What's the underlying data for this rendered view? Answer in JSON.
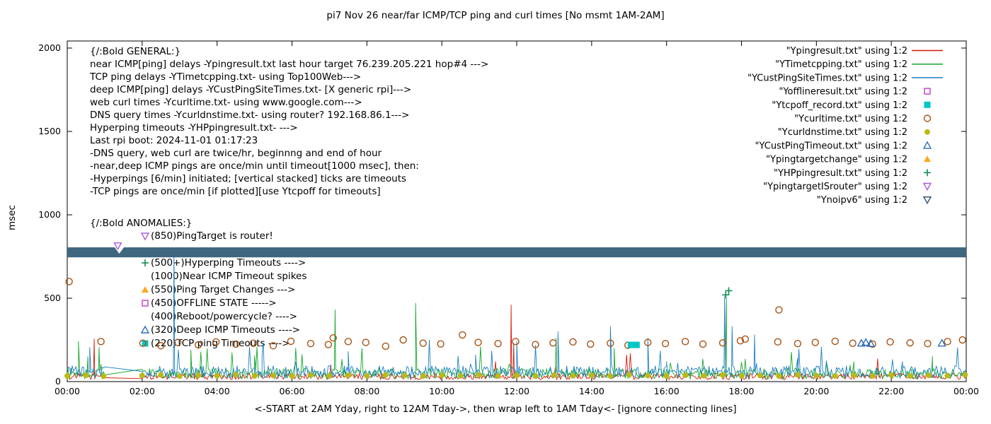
{
  "page": {
    "title": "pi7 Nov 26  near/far ICMP/TCP ping and curl times [No msmt 1AM-2AM]"
  },
  "axes": {
    "ylabel": "msec",
    "xlabel": "<-START at 2AM Yday, right to 12AM Tday->, then wrap left to 1AM Tday<- [ignore connecting lines]",
    "yticks": [
      0,
      500,
      1000,
      1500,
      2000
    ],
    "xticks": [
      "00:00",
      "02:00",
      "04:00",
      "06:00",
      "08:00",
      "10:00",
      "12:00",
      "14:00",
      "16:00",
      "18:00",
      "20:00",
      "22:00",
      "00:00"
    ]
  },
  "legend": {
    "entries": [
      {
        "label": "\"Ypingresult.txt\" using 1:2",
        "sample": "line",
        "marker": null,
        "color": "#d81607"
      },
      {
        "label": "\"YTimetcpping.txt\" using 1:2",
        "sample": "line",
        "marker": null,
        "color": "#15a62c"
      },
      {
        "label": "\"YCustPingSiteTimes.txt\" using 1:2",
        "sample": "line",
        "marker": null,
        "color": "#1b7fc2"
      },
      {
        "label": "\"Yofflineresult.txt\" using 1:2",
        "sample": "marker",
        "marker": "square-open",
        "color": "#c837c8"
      },
      {
        "label": "\"Ytcpoff_record.txt\" using 1:2",
        "sample": "marker",
        "marker": "square-filled",
        "color": "#00c6c6"
      },
      {
        "label": "\"Ycurltime.txt\" using 1:2",
        "sample": "marker",
        "marker": "circle-open",
        "color": "#a85212"
      },
      {
        "label": "\"Ycurldnstime.txt\" using 1:2",
        "sample": "marker",
        "marker": "circle-filled",
        "color": "#b9ba16"
      },
      {
        "label": "\"YCustPingTimeout.txt\" using 1:2",
        "sample": "marker",
        "marker": "triangle-open",
        "color": "#2a6fc0"
      },
      {
        "label": "\"Ypingtargetchange\" using 1:2",
        "sample": "marker",
        "marker": "triangle-filled",
        "color": "#ffa71b"
      },
      {
        "label": "\"YHPpingresult.txt\" using 1:2",
        "sample": "marker",
        "marker": "plus",
        "color": "#0d8f54"
      },
      {
        "label": "\"YpingtargetISrouter\" using 1:2",
        "sample": "marker",
        "marker": "triangle-down-open",
        "color": "#a55fe0"
      },
      {
        "label": "\"Ynoipv6\" using 1:2",
        "sample": "marker",
        "marker": "triangle-down-open",
        "color": "#2e4f6e"
      }
    ]
  },
  "annotations": {
    "general": [
      "{/:Bold GENERAL:}",
      "near ICMP[ping] delays -Ypingresult.txt last hour target 76.239.205.221 hop#4 --->",
      "TCP ping delays -YTimetcpping.txt- using Top100Web--->",
      "deep ICMP[ping] delays -YCustPingSiteTimes.txt- [X generic rpi]--->",
      "web curl times -Ycurltime.txt- using www.google.com--->",
      "DNS query times -Ycurldnstime.txt- using router? 192.168.86.1--->",
      "Hyperping timeouts -YHPpingresult.txt- --->",
      "Last rpi boot: 2024-11-01 01:17:23",
      "                    -DNS query, web curl are twice/hr, beginnng and end of hour",
      "                    -near,deep ICMP pings are once/min until timeout[1000 msec], then:",
      "                      -Hyperpings [6/min] initiated; [vertical stacked] ticks are timeouts",
      "                    -TCP pings are once/min [if plotted][use Ytcpoff for timeouts]"
    ],
    "anomalies_header": "{/:Bold ANOMALIES:}",
    "anomalies": [
      {
        "marker": "triangle-down-open",
        "color": "#a55fe0",
        "text": "(850)PingTarget is router!"
      },
      {
        "marker": null,
        "color": null,
        "text": ""
      },
      {
        "marker": "plus",
        "color": "#0d8f54",
        "text": "(500+)Hyperping Timeouts ---->"
      },
      {
        "marker": null,
        "color": null,
        "text": "(1000)Near ICMP Timeout spikes"
      },
      {
        "marker": "triangle-filled",
        "color": "#ffa71b",
        "text": "(550)Ping Target Changes --->"
      },
      {
        "marker": "square-open",
        "color": "#c837c8",
        "text": "(450)OFFLINE STATE ----->"
      },
      {
        "marker": null,
        "color": null,
        "text": "(400)Reboot/powercycle? ---->"
      },
      {
        "marker": "triangle-open",
        "color": "#2a6fc0",
        "text": "(320)Deep ICMP Timeouts ---->"
      },
      {
        "marker": "square-filled",
        "color": "#00c6c6",
        "text": "(220)TCP ping Timeouts ---->"
      }
    ]
  },
  "chart_data": {
    "type": "line",
    "x_hours_range": [
      0,
      24
    ],
    "ylim": [
      0,
      2000
    ],
    "grid": false,
    "legend_position": "top-right",
    "no_measurement_gap_hours": [
      1,
      2
    ],
    "band": {
      "y_from": 745,
      "y_to": 805,
      "color": "#3f6880"
    },
    "line_series": [
      {
        "name": "Ypingresult",
        "color": "#d81607",
        "baseline_msec": [
          12,
          50
        ],
        "spike_prob": 0.008,
        "spike_range": [
          70,
          170
        ],
        "spikes": [
          [
            0.72,
            255
          ],
          [
            11.85,
            460
          ],
          [
            11.92,
            230
          ]
        ]
      },
      {
        "name": "YTimetcpping",
        "color": "#15a62c",
        "baseline_msec": [
          15,
          80
        ],
        "spike_prob": 0.02,
        "spike_range": [
          90,
          210
        ],
        "spikes": [
          [
            0.3,
            240
          ],
          [
            0.55,
            150
          ],
          [
            0.85,
            205
          ],
          [
            3.3,
            190
          ],
          [
            5.0,
            155
          ],
          [
            7.15,
            430
          ],
          [
            9.3,
            470
          ],
          [
            13.05,
            260
          ],
          [
            14.6,
            200
          ],
          [
            17.6,
            500
          ],
          [
            21.0,
            120
          ],
          [
            23.1,
            150
          ]
        ]
      },
      {
        "name": "YCustPingSiteTimes",
        "color": "#1b7fc2",
        "baseline_msec": [
          20,
          95
        ],
        "spike_prob": 0.03,
        "spike_range": [
          100,
          250
        ],
        "spikes": [
          [
            0.6,
            205
          ],
          [
            2.85,
            790
          ],
          [
            5.2,
            150
          ],
          [
            7.5,
            180
          ],
          [
            10.9,
            160
          ],
          [
            12.0,
            240
          ],
          [
            13.1,
            300
          ],
          [
            14.5,
            330
          ],
          [
            15.5,
            260
          ],
          [
            16.0,
            120
          ],
          [
            17.55,
            510
          ],
          [
            17.75,
            330
          ],
          [
            18.35,
            280
          ],
          [
            19.5,
            140
          ],
          [
            22.3,
            120
          ]
        ]
      }
    ],
    "scatter_series": [
      {
        "name": "Ycurltime",
        "marker": "circle-open",
        "color": "#a85212",
        "points": [
          [
            0.05,
            600
          ],
          [
            0.9,
            240
          ],
          [
            2.02,
            230
          ],
          [
            2.5,
            215
          ],
          [
            2.95,
            235
          ],
          [
            3.5,
            220
          ],
          [
            3.97,
            238
          ],
          [
            4.5,
            225
          ],
          [
            4.97,
            230
          ],
          [
            5.5,
            215
          ],
          [
            5.97,
            242
          ],
          [
            6.5,
            228
          ],
          [
            6.97,
            222
          ],
          [
            7.1,
            262
          ],
          [
            7.5,
            240
          ],
          [
            7.97,
            235
          ],
          [
            8.5,
            212
          ],
          [
            8.97,
            250
          ],
          [
            9.5,
            230
          ],
          [
            9.97,
            226
          ],
          [
            10.55,
            280
          ],
          [
            10.97,
            235
          ],
          [
            11.5,
            228
          ],
          [
            11.97,
            240
          ],
          [
            12.5,
            222
          ],
          [
            12.97,
            232
          ],
          [
            13.5,
            238
          ],
          [
            13.97,
            225
          ],
          [
            14.5,
            230
          ],
          [
            14.97,
            218
          ],
          [
            15.5,
            235
          ],
          [
            15.97,
            228
          ],
          [
            16.5,
            240
          ],
          [
            16.97,
            225
          ],
          [
            17.5,
            232
          ],
          [
            17.97,
            245
          ],
          [
            18.1,
            255
          ],
          [
            18.97,
            238
          ],
          [
            19.0,
            430
          ],
          [
            19.5,
            228
          ],
          [
            19.97,
            235
          ],
          [
            20.5,
            242
          ],
          [
            20.97,
            230
          ],
          [
            21.5,
            225
          ],
          [
            21.97,
            238
          ],
          [
            22.5,
            232
          ],
          [
            22.97,
            228
          ],
          [
            23.5,
            240
          ],
          [
            23.9,
            250
          ]
        ]
      },
      {
        "name": "Ycurldnstime",
        "marker": "circle-filled",
        "color": "#b9ba16",
        "points": [
          [
            0.0,
            34
          ],
          [
            0.5,
            38
          ],
          [
            0.97,
            32
          ],
          [
            2.0,
            36
          ],
          [
            2.5,
            40
          ],
          [
            3.0,
            33
          ],
          [
            3.5,
            38
          ],
          [
            4.0,
            35
          ],
          [
            4.5,
            41
          ],
          [
            5.0,
            34
          ],
          [
            5.5,
            37
          ],
          [
            6.0,
            33
          ],
          [
            6.5,
            39
          ],
          [
            7.0,
            35
          ],
          [
            7.5,
            38
          ],
          [
            8.0,
            34
          ],
          [
            8.5,
            40
          ],
          [
            9.0,
            36
          ],
          [
            9.5,
            33
          ],
          [
            10.0,
            38
          ],
          [
            10.5,
            35
          ],
          [
            11.0,
            40
          ],
          [
            11.5,
            34
          ],
          [
            12.0,
            37
          ],
          [
            12.5,
            33
          ],
          [
            13.0,
            39
          ],
          [
            13.5,
            35
          ],
          [
            14.0,
            38
          ],
          [
            14.5,
            34
          ],
          [
            15.0,
            40
          ],
          [
            15.5,
            36
          ],
          [
            16.0,
            33
          ],
          [
            16.5,
            38
          ],
          [
            17.0,
            35
          ],
          [
            17.5,
            39
          ],
          [
            18.0,
            34
          ],
          [
            18.5,
            37
          ],
          [
            19.0,
            33
          ],
          [
            19.5,
            40
          ],
          [
            20.0,
            36
          ],
          [
            20.5,
            34
          ],
          [
            21.0,
            38
          ],
          [
            21.5,
            35
          ],
          [
            22.0,
            39
          ],
          [
            22.5,
            34
          ],
          [
            23.0,
            37
          ],
          [
            23.5,
            36
          ],
          [
            23.97,
            40
          ]
        ]
      },
      {
        "name": "YCustPingTimeout",
        "marker": "triangle-open",
        "color": "#2a6fc0",
        "points": [
          [
            21.2,
            230
          ],
          [
            21.32,
            235
          ],
          [
            21.45,
            228
          ],
          [
            23.35,
            230
          ]
        ]
      },
      {
        "name": "Ytcpoff_record",
        "marker": "square-filled",
        "color": "#00c6c6",
        "points": [
          [
            15.05,
            220
          ],
          [
            15.2,
            220
          ]
        ]
      },
      {
        "name": "YHPpingresult",
        "marker": "plus",
        "color": "#0d8f54",
        "points": [
          [
            17.58,
            520
          ],
          [
            17.66,
            545
          ]
        ]
      },
      {
        "name": "YpingtargetISrouter",
        "marker": "triangle-down-open",
        "color": "#a55fe0",
        "points": [
          [
            1.35,
            815
          ]
        ]
      }
    ]
  }
}
